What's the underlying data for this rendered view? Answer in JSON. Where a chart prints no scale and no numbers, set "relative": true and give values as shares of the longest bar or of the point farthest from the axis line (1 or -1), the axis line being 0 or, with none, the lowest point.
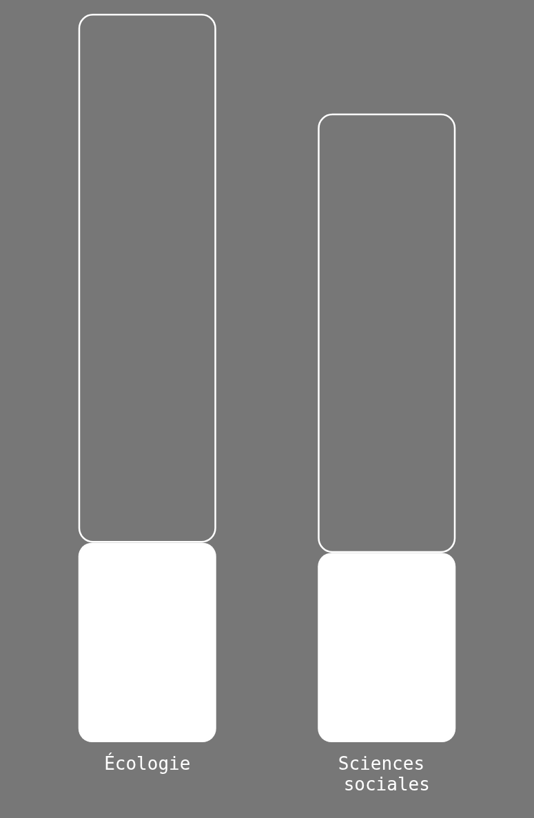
{
  "chart_data": {
    "type": "bar",
    "categories": [
      "Écologie",
      "Sciences sociales"
    ],
    "stacked": true,
    "relative": true,
    "series": [
      {
        "color": "#ffffff",
        "values": [
          0.274,
          0.26
        ]
      },
      {
        "color": "#ffffff",
        "values": [
          0.726,
          0.603
        ]
      }
    ]
  }
}
